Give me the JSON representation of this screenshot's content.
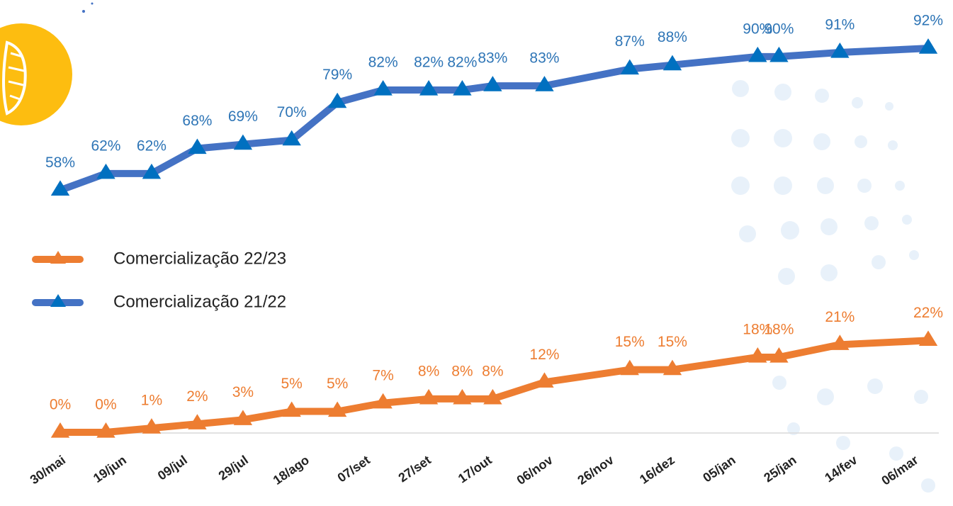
{
  "chart_data": {
    "type": "line",
    "x": [
      0,
      15,
      30,
      45,
      60,
      76,
      91,
      106,
      121,
      132,
      142,
      159,
      187,
      201,
      229,
      236,
      256,
      285
    ],
    "xlim": [
      0,
      285
    ],
    "xticks": [
      {
        "value": 0,
        "label": "30/mai"
      },
      {
        "value": 20,
        "label": "19/jun"
      },
      {
        "value": 40,
        "label": "09/jul"
      },
      {
        "value": 60,
        "label": "29/jul"
      },
      {
        "value": 80,
        "label": "18/ago"
      },
      {
        "value": 100,
        "label": "07/set"
      },
      {
        "value": 120,
        "label": "27/set"
      },
      {
        "value": 140,
        "label": "17/out"
      },
      {
        "value": 160,
        "label": "06/nov"
      },
      {
        "value": 180,
        "label": "26/nov"
      },
      {
        "value": 200,
        "label": "16/dez"
      },
      {
        "value": 220,
        "label": "05/jan"
      },
      {
        "value": 240,
        "label": "25/jan"
      },
      {
        "value": 260,
        "label": "14/fev"
      },
      {
        "value": 280,
        "label": "06/mar"
      }
    ],
    "ylim": [
      0,
      100
    ],
    "series": [
      {
        "name": "Comercialização 22/23",
        "color": "#ed7d31",
        "values": [
          0,
          0,
          1,
          2,
          3,
          5,
          5,
          7,
          8,
          8,
          8,
          12,
          15,
          15,
          18,
          18,
          21,
          22
        ],
        "value_labels": [
          "0%",
          "0%",
          "1%",
          "2%",
          "3%",
          "5%",
          "5%",
          "7%",
          "8%",
          "8%",
          "8%",
          "12%",
          "15%",
          "15%",
          "18%",
          "18%",
          "21%",
          "22%"
        ]
      },
      {
        "name": "Comercialização 21/22",
        "color": "#4472c4",
        "values": [
          58,
          62,
          62,
          68,
          69,
          70,
          79,
          82,
          82,
          82,
          83,
          83,
          87,
          88,
          90,
          90,
          91,
          92
        ],
        "value_labels": [
          "58%",
          "62%",
          "62%",
          "68%",
          "69%",
          "70%",
          "79%",
          "82%",
          "82%",
          "82%",
          "83%",
          "83%",
          "87%",
          "88%",
          "90%",
          "90%",
          "91%",
          "92%"
        ]
      }
    ]
  }
}
